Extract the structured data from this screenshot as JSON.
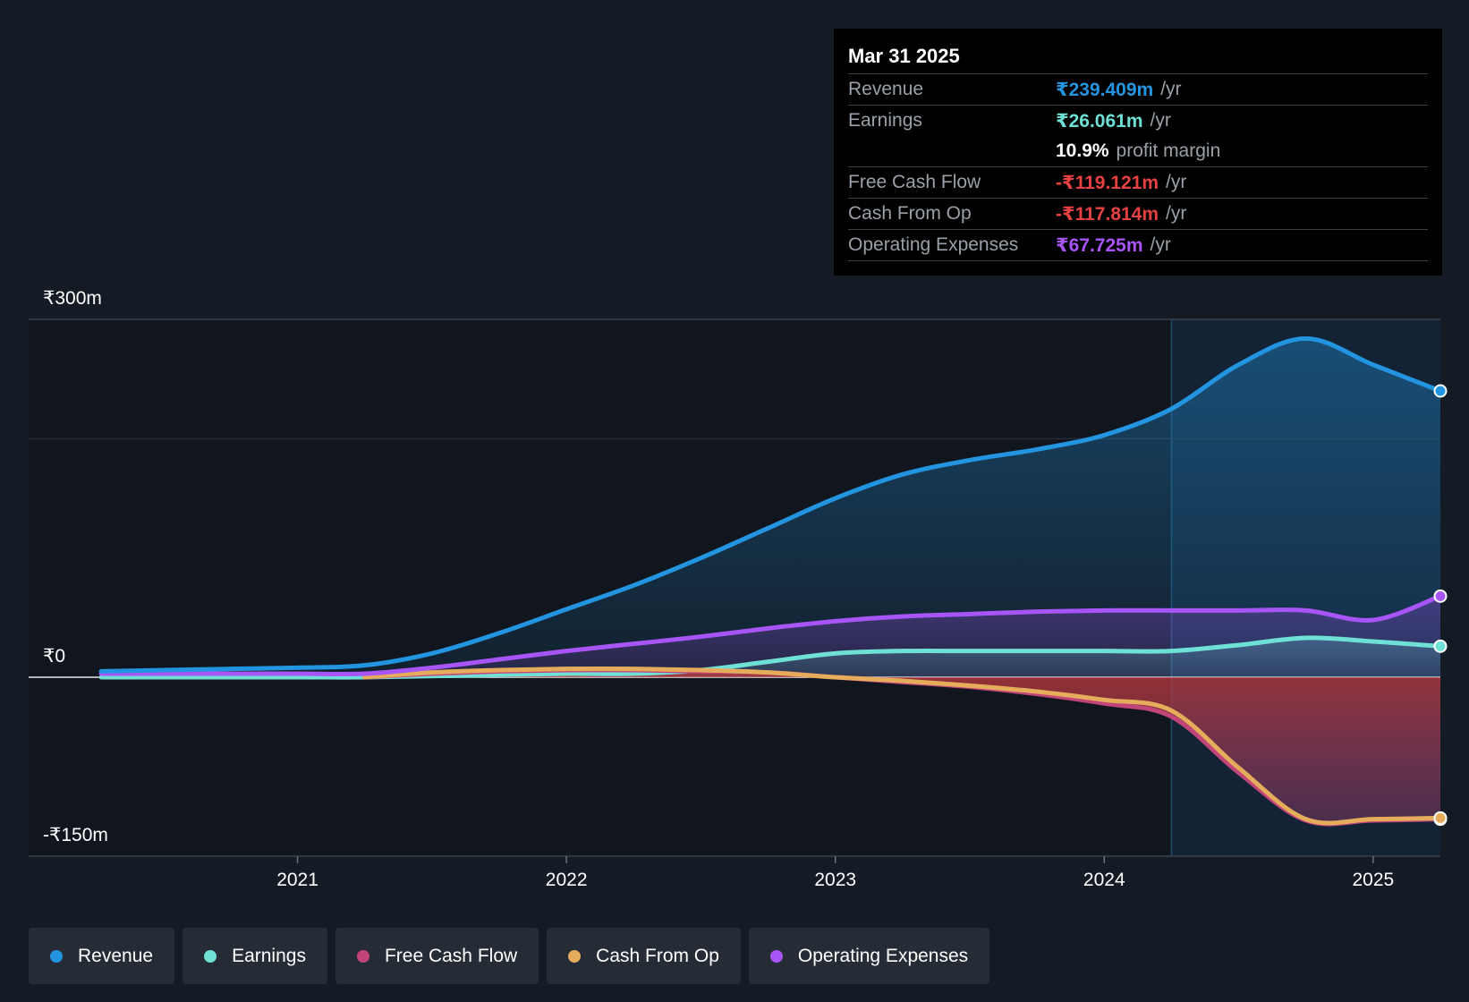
{
  "tooltip": {
    "date": "Mar 31 2025",
    "rows": [
      {
        "label": "Revenue",
        "value": "₹239.409m",
        "unit": "/yr",
        "color": "#2394df"
      },
      {
        "label": "Earnings",
        "value": "₹26.061m",
        "unit": "/yr",
        "color": "#6ee0d6"
      },
      {
        "label": "",
        "value": "10.9%",
        "unit": "profit margin",
        "color": "#ffffff"
      },
      {
        "label": "Free Cash Flow",
        "value": "-₹119.121m",
        "unit": "/yr",
        "color": "#e64141"
      },
      {
        "label": "Cash From Op",
        "value": "-₹117.814m",
        "unit": "/yr",
        "color": "#e64141"
      },
      {
        "label": "Operating Expenses",
        "value": "₹67.725m",
        "unit": "/yr",
        "color": "#a855f7"
      }
    ]
  },
  "legend": [
    {
      "label": "Revenue",
      "color": "#2394df"
    },
    {
      "label": "Earnings",
      "color": "#6ee0d6"
    },
    {
      "label": "Free Cash Flow",
      "color": "#c2457a"
    },
    {
      "label": "Cash From Op",
      "color": "#e5ac5c"
    },
    {
      "label": "Operating Expenses",
      "color": "#a855f7"
    }
  ],
  "chart_data": {
    "type": "line",
    "y_tick_labels": [
      "₹300m",
      "₹0",
      "-₹150m"
    ],
    "y_ticks": [
      300,
      0,
      -150
    ],
    "ylim": [
      -150,
      300
    ],
    "x_tick_labels": [
      "2021",
      "2022",
      "2023",
      "2024",
      "2025"
    ],
    "x_ticks": [
      2021,
      2022,
      2023,
      2024,
      2025
    ],
    "xlim": [
      2020.0,
      2025.25
    ],
    "highlight_from": 2024.25,
    "grid": true,
    "legend_position": "bottom",
    "series": [
      {
        "name": "Revenue",
        "color": "#2394df",
        "x": [
          2020.27,
          2020.5,
          2020.75,
          2021.0,
          2021.25,
          2021.5,
          2021.75,
          2022.0,
          2022.25,
          2022.5,
          2022.75,
          2023.0,
          2023.25,
          2023.5,
          2023.75,
          2024.0,
          2024.25,
          2024.5,
          2024.75,
          2025.0,
          2025.25
        ],
        "values": [
          5,
          6,
          7,
          8,
          10,
          20,
          37,
          57,
          77,
          100,
          125,
          150,
          170,
          182,
          191,
          203,
          225,
          262,
          284,
          262,
          240
        ]
      },
      {
        "name": "Earnings",
        "color": "#6ee0d6",
        "x": [
          2020.27,
          2020.5,
          2020.75,
          2021.0,
          2021.25,
          2021.5,
          2021.75,
          2022.0,
          2022.25,
          2022.5,
          2022.75,
          2023.0,
          2023.25,
          2023.5,
          2023.75,
          2024.0,
          2024.25,
          2024.5,
          2024.75,
          2025.0,
          2025.25
        ],
        "values": [
          0,
          0,
          0,
          0,
          0,
          1,
          2,
          3,
          3,
          6,
          13,
          20,
          22,
          22,
          22,
          22,
          22,
          27,
          33,
          30,
          26
        ]
      },
      {
        "name": "Free Cash Flow",
        "color": "#c2457a",
        "x": [
          2021.25,
          2021.5,
          2021.75,
          2022.0,
          2022.25,
          2022.5,
          2022.75,
          2023.0,
          2023.25,
          2023.5,
          2023.75,
          2024.0,
          2024.25,
          2024.5,
          2024.75,
          2025.0,
          2025.25
        ],
        "values": [
          0,
          3,
          5,
          6,
          6,
          5,
          4,
          0,
          -4,
          -8,
          -14,
          -22,
          -33,
          -80,
          -120,
          -120,
          -119
        ]
      },
      {
        "name": "Cash From Op",
        "color": "#e5ac5c",
        "x": [
          2021.25,
          2021.5,
          2021.75,
          2022.0,
          2022.25,
          2022.5,
          2022.75,
          2023.0,
          2023.25,
          2023.5,
          2023.75,
          2024.0,
          2024.25,
          2024.5,
          2024.75,
          2025.0,
          2025.25
        ],
        "values": [
          0,
          4,
          6,
          7,
          7,
          6,
          4,
          0,
          -3,
          -7,
          -12,
          -19,
          -28,
          -76,
          -119,
          -119,
          -118
        ]
      },
      {
        "name": "Operating Expenses",
        "color": "#a855f7",
        "x": [
          2020.27,
          2020.5,
          2020.75,
          2021.0,
          2021.25,
          2021.5,
          2021.75,
          2022.0,
          2022.25,
          2022.5,
          2022.75,
          2023.0,
          2023.25,
          2023.5,
          2023.75,
          2024.0,
          2024.25,
          2024.5,
          2024.75,
          2025.0,
          2025.25
        ],
        "values": [
          3,
          3,
          3,
          3,
          3,
          8,
          15,
          22,
          28,
          34,
          41,
          47,
          51,
          53,
          55,
          56,
          56,
          56,
          56,
          48,
          68
        ]
      }
    ]
  }
}
